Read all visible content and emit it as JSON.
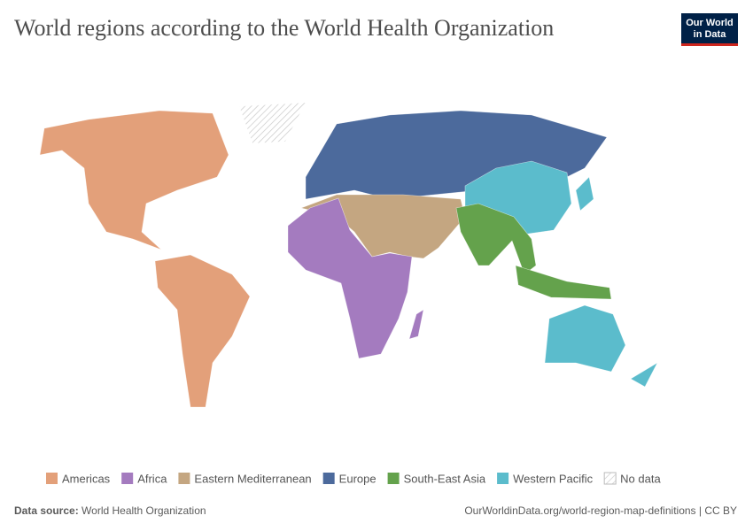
{
  "header": {
    "title": "World regions according to the World Health Organization",
    "logo": [
      "Our World",
      "in Data"
    ]
  },
  "legend": [
    {
      "name": "Americas",
      "color": "#e3a07a"
    },
    {
      "name": "Africa",
      "color": "#a47bbf"
    },
    {
      "name": "Eastern Mediterranean",
      "color": "#c4a681"
    },
    {
      "name": "Europe",
      "color": "#4c6a9c"
    },
    {
      "name": "South-East Asia",
      "color": "#64a24c"
    },
    {
      "name": "Western Pacific",
      "color": "#5bbccc"
    },
    {
      "name": "No data"
    }
  ],
  "footer": {
    "source_label": "Data source:",
    "source": "World Health Organization",
    "url": "OurWorldinData.org/world-region-map-definitions | CC BY"
  }
}
